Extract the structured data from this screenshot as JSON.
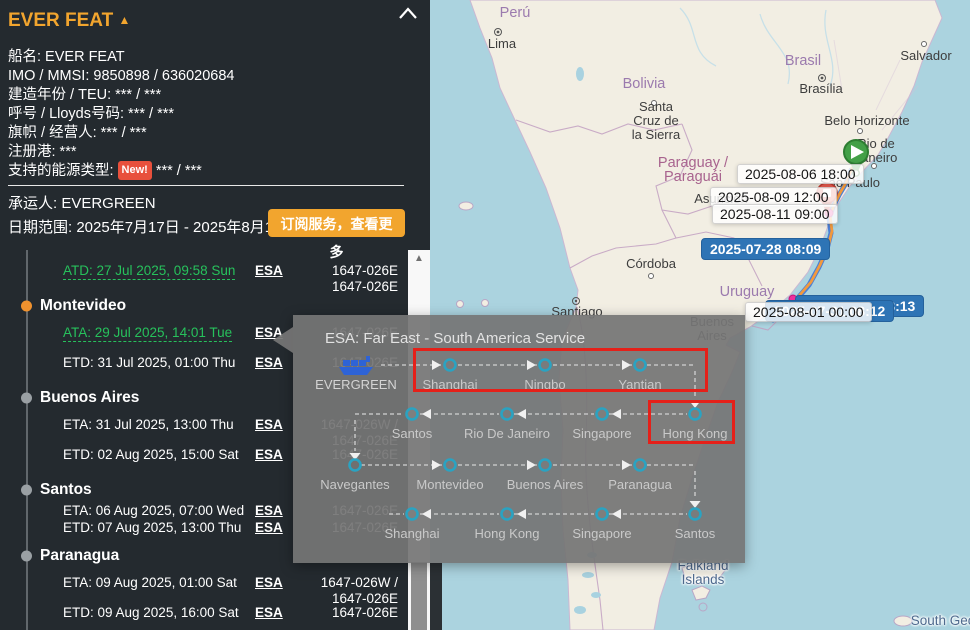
{
  "panel": {
    "title": "EVER FEAT",
    "info_lines": [
      "船名: EVER FEAT",
      "IMO / MMSI: 9850898 / 636020684",
      "建造年份 / TEU: *** / ***",
      "呼号 / Lloyds号码: *** / ***",
      "旗帜 / 经营人: *** / ***",
      "注册港: ***"
    ],
    "energy": {
      "prefix": "支持的能源类型:",
      "badge": "New!",
      "suffix": "*** / ***"
    },
    "carrier": "承运人: EVERGREEN",
    "date_range": "日期范围: 2025年7月17日 - 2025年8月14日",
    "subscribe": "订阅服务，查看更多"
  },
  "schedule": {
    "rows": [
      {
        "kind": "event",
        "status": "actual",
        "label": "ATD: 27 Jul 2025, 09:58 Sun",
        "esa": "ESA",
        "voyage": [
          "1647-026E",
          "1647-026E"
        ]
      },
      {
        "kind": "port",
        "name": "Montevideo",
        "dot": "#f0922e"
      },
      {
        "kind": "event",
        "status": "actual",
        "label": "ATA: 29 Jul 2025, 14:01 Tue",
        "esa": "ESA",
        "voyage": [
          "1647-026E"
        ]
      },
      {
        "kind": "event",
        "status": "estimate",
        "label": "ETD: 31 Jul 2025, 01:00 Thu",
        "esa": "ESA",
        "voyage": [
          "1647-026E"
        ]
      },
      {
        "kind": "port",
        "name": "Buenos Aires",
        "dot": "#9aa0a4"
      },
      {
        "kind": "event",
        "status": "estimate",
        "label": "ETA: 31 Jul 2025, 13:00 Thu",
        "esa": "ESA",
        "voyage": [
          "1647-026W /",
          "1647-026E"
        ]
      },
      {
        "kind": "event",
        "status": "estimate",
        "label": "ETD: 02 Aug 2025, 15:00 Sat",
        "esa": "ESA",
        "voyage": [
          "1647-026E"
        ]
      },
      {
        "kind": "port",
        "name": "Santos",
        "dot": "#9aa0a4"
      },
      {
        "kind": "event",
        "status": "estimate",
        "tight": true,
        "label": "ETA: 06 Aug 2025, 07:00 Wed",
        "esa": "ESA",
        "voyage": [
          "1647-026E"
        ]
      },
      {
        "kind": "event",
        "status": "estimate",
        "tight": true,
        "label": "ETD: 07 Aug 2025, 13:00 Thu",
        "esa": "ESA",
        "voyage": [
          "1647-026E"
        ]
      },
      {
        "kind": "port",
        "name": "Paranagua",
        "dot": "#9aa0a4"
      },
      {
        "kind": "event",
        "status": "estimate",
        "label": "ETA: 09 Aug 2025, 01:00 Sat",
        "esa": "ESA",
        "voyage": [
          "1647-026W /",
          "1647-026E"
        ]
      },
      {
        "kind": "event",
        "status": "estimate",
        "label": "ETD: 09 Aug 2025, 16:00 Sat",
        "esa": "ESA",
        "voyage": [
          "1647-026E"
        ]
      }
    ]
  },
  "tooltip": {
    "title": "ESA: Far East - South America Service",
    "carrier": "EVERGREEN",
    "legs": [
      {
        "dir": "right",
        "ports": [
          "Shanghai",
          "Ningbo",
          "Yantian"
        ]
      },
      {
        "dir": "left",
        "ports": [
          "Santos",
          "Rio De Janeiro",
          "Singapore",
          "Hong Kong"
        ]
      },
      {
        "dir": "right",
        "ports": [
          "Navegantes",
          "Montevideo",
          "Buenos Aires",
          "Paranagua"
        ]
      },
      {
        "dir": "left",
        "ports": [
          "Shanghai",
          "Hong Kong",
          "Singapore",
          "Santos"
        ]
      }
    ]
  },
  "map": {
    "labels": [
      {
        "id": "peru",
        "cls": "country",
        "lines": [
          "Perú"
        ]
      },
      {
        "id": "lima",
        "cls": "city",
        "lines": [
          "Lima"
        ]
      },
      {
        "id": "bolivia",
        "cls": "country",
        "lines": [
          "Bolivia"
        ]
      },
      {
        "id": "santacruz",
        "cls": "city",
        "lines": [
          "Santa",
          "Cruz de",
          "la Sierra"
        ]
      },
      {
        "id": "brasil",
        "cls": "country",
        "lines": [
          "Brasil"
        ]
      },
      {
        "id": "brasilia",
        "cls": "city",
        "lines": [
          "Brasília"
        ]
      },
      {
        "id": "salvador",
        "cls": "city",
        "lines": [
          "Salvador"
        ]
      },
      {
        "id": "belo",
        "cls": "city",
        "lines": [
          "Belo Horizonte"
        ]
      },
      {
        "id": "rio",
        "cls": "city",
        "lines": [
          "Rio de",
          "Janeiro"
        ]
      },
      {
        "id": "saopaulo",
        "cls": "city",
        "lines": [
          "São Paulo"
        ]
      },
      {
        "id": "paraguay",
        "cls": "country pink",
        "lines": [
          "Paraguay /",
          "Paraguái"
        ]
      },
      {
        "id": "asuncion",
        "cls": "city",
        "lines": [
          "Asunción"
        ]
      },
      {
        "id": "cordoba",
        "cls": "city",
        "lines": [
          "Córdoba"
        ]
      },
      {
        "id": "santiago",
        "cls": "city",
        "lines": [
          "Santiago"
        ]
      },
      {
        "id": "uruguay",
        "cls": "country",
        "lines": [
          "Uruguay"
        ]
      },
      {
        "id": "buenosaires",
        "cls": "city",
        "lines": [
          "Buenos",
          "Aires"
        ]
      },
      {
        "id": "falkland",
        "cls": "water",
        "lines": [
          "Falkland",
          "Islands"
        ]
      },
      {
        "id": "southgeo",
        "cls": "water",
        "lines": [
          "South Geo"
        ]
      }
    ],
    "date_labels": [
      {
        "text": "2025-08-06 18:00",
        "style": "light"
      },
      {
        "text": "2025-08-09 12:00",
        "style": "light"
      },
      {
        "text": "2025-08-11 09:00",
        "style": "light"
      },
      {
        "text": "2025-07-28 08:09",
        "style": "blue"
      },
      {
        "text": "2025-07-29 08:13",
        "style": "blue"
      },
      {
        "text": "2025-07-31 08:12",
        "style": "blue"
      },
      {
        "text": "2025-08-01 00:00",
        "style": "light"
      }
    ]
  },
  "colors": {
    "accent_orange": "#f2a52e",
    "actual_green": "#27c15c",
    "badge_red": "#e8503c",
    "highlight_red": "#e52019",
    "node_teal": "#2aa3c2",
    "label_blue": "#2e74b5",
    "route_orange": "#f2993d",
    "route_blue": "#4a7fd6",
    "stop_pink": "#ee2f9b"
  }
}
